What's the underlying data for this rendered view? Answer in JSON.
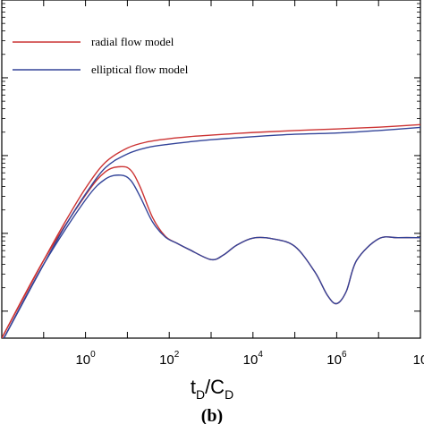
{
  "chart_data": {
    "type": "line",
    "xscale": "log",
    "yscale": "log",
    "xlim": [
      0.01,
      100000000
    ],
    "x_ticks": [
      {
        "base": "10",
        "exp": "0"
      },
      {
        "base": "10",
        "exp": "2"
      },
      {
        "base": "10",
        "exp": "4"
      },
      {
        "base": "10",
        "exp": "6"
      },
      {
        "base": "10",
        "exp": ""
      }
    ],
    "xlabel": {
      "t": "t",
      "t_sub": "D",
      "sep": "/C",
      "c_sub": "D"
    },
    "caption": "(b)",
    "legend": {
      "placement": "top-left"
    },
    "series": [
      {
        "name": "radial flow model",
        "color": "#cc3333",
        "curves": [
          {
            "role": "pressure",
            "x": [
              0.01,
              0.03,
              0.1,
              0.3,
              1,
              3,
              10,
              30,
              100,
              300,
              1000,
              10000,
              100000,
              1000000,
              10000000,
              100000000
            ],
            "y": [
              0.45,
              1.35,
              4.5,
              13,
              38,
              82,
              125,
              150,
              165,
              175,
              183,
              198,
              210,
              220,
              232,
              250
            ]
          },
          {
            "role": "derivative",
            "x": [
              0.01,
              0.1,
              1,
              3,
              7,
              12,
              20,
              40,
              80,
              150,
              300,
              1000,
              2000,
              4000,
              10000,
              30000,
              100000,
              300000,
              600000,
              1000000,
              1700000,
              3000000,
              10000000,
              30000000,
              100000000
            ],
            "y": [
              0.45,
              4.5,
              31,
              62,
              72,
              65,
              40,
              16,
              9.2,
              7.5,
              6.2,
              4.6,
              5.3,
              7.0,
              8.7,
              8.5,
              6.8,
              3.2,
              1.6,
              1.25,
              1.8,
              4.5,
              8.5,
              8.8,
              8.8
            ]
          }
        ]
      },
      {
        "name": "elliptical flow model",
        "color": "#334499",
        "curves": [
          {
            "role": "pressure",
            "x": [
              0.01,
              0.03,
              0.1,
              0.3,
              1,
              3,
              10,
              30,
              100,
              300,
              1000,
              10000,
              100000,
              1000000,
              10000000,
              100000000
            ],
            "y": [
              0.4,
              1.2,
              4.0,
              11.5,
              32,
              70,
              105,
              127,
              140,
              150,
              160,
              175,
              188,
              195,
              210,
              230
            ]
          },
          {
            "role": "derivative",
            "x": [
              0.01,
              0.1,
              1,
              3,
              7,
              12,
              20,
              40,
              80,
              150,
              300,
              1000,
              2000,
              4000,
              10000,
              30000,
              100000,
              300000,
              600000,
              1000000,
              1700000,
              3000000,
              10000000,
              30000000,
              100000000
            ],
            "y": [
              0.4,
              4.0,
              27,
              50,
              56,
              48,
              30,
              14,
              9.0,
              7.5,
              6.2,
              4.6,
              5.3,
              7.0,
              8.7,
              8.5,
              6.8,
              3.2,
              1.6,
              1.25,
              1.8,
              4.5,
              8.5,
              8.8,
              8.8
            ]
          }
        ]
      }
    ]
  }
}
